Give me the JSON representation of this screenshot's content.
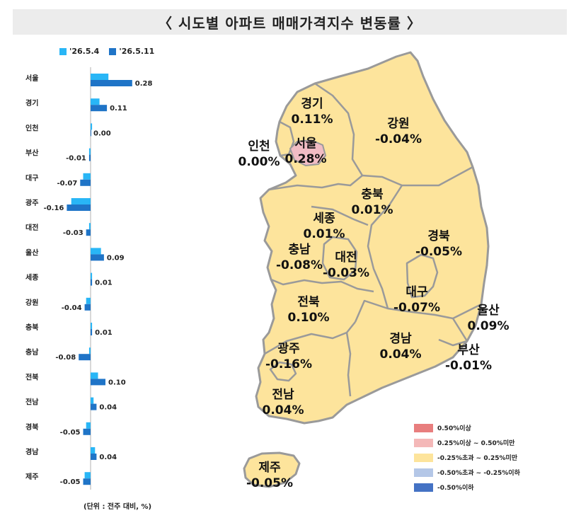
{
  "title": "〈 시도별 아파트 매매가격지수 변동률 〉",
  "unit_note": "(단위 : 전주 대비, %)",
  "colors": {
    "prev": "#29b6f6",
    "curr": "#1f74c7",
    "map_fill": "#fde49c",
    "map_border": "#9a9a9a",
    "seoul_fill": "#f1bcc4"
  },
  "chart_data": {
    "type": "bar",
    "orientation": "horizontal",
    "categories": [
      "서울",
      "경기",
      "인천",
      "부산",
      "대구",
      "광주",
      "대전",
      "울산",
      "세종",
      "강원",
      "충북",
      "충남",
      "전북",
      "전남",
      "경북",
      "경남",
      "제주"
    ],
    "series": [
      {
        "name": "'26.5.4",
        "values": [
          0.12,
          0.06,
          0.01,
          -0.01,
          -0.05,
          -0.13,
          -0.01,
          0.07,
          0.01,
          -0.03,
          0.01,
          -0.01,
          0.05,
          0.02,
          -0.03,
          0.03,
          -0.04
        ]
      },
      {
        "name": "'26.5.11",
        "values": [
          0.28,
          0.11,
          0.0,
          -0.01,
          -0.07,
          -0.16,
          -0.03,
          0.09,
          0.01,
          -0.04,
          0.01,
          -0.08,
          0.1,
          0.04,
          -0.05,
          0.04,
          -0.05
        ]
      }
    ],
    "data_labels": [
      "0.28",
      "0.11",
      "0.00",
      "-0.01",
      "-0.07",
      "-0.16",
      "-0.03",
      "0.09",
      "0.01",
      "-0.04",
      "0.01",
      "-0.08",
      "0.10",
      "0.04",
      "-0.05",
      "0.04",
      "-0.05"
    ]
  },
  "map": {
    "regions": [
      {
        "name": "경기",
        "value": "0.11%"
      },
      {
        "name": "강원",
        "value": "-0.04%"
      },
      {
        "name": "인천",
        "value": "0.00%"
      },
      {
        "name": "서울",
        "value": "0.28%"
      },
      {
        "name": "충북",
        "value": "0.01%"
      },
      {
        "name": "세종",
        "value": "0.01%"
      },
      {
        "name": "경북",
        "value": "-0.05%"
      },
      {
        "name": "충남",
        "value": "-0.08%"
      },
      {
        "name": "대전",
        "value": "-0.03%"
      },
      {
        "name": "대구",
        "value": "-0.07%"
      },
      {
        "name": "전북",
        "value": "0.10%"
      },
      {
        "name": "울산",
        "value": "0.09%"
      },
      {
        "name": "광주",
        "value": "-0.16%"
      },
      {
        "name": "경남",
        "value": "0.04%"
      },
      {
        "name": "부산",
        "value": "-0.01%"
      },
      {
        "name": "전남",
        "value": "0.04%"
      },
      {
        "name": "제주",
        "value": "-0.05%"
      }
    ],
    "legend": [
      {
        "label": "0.50%이상",
        "color": "#e87e7e"
      },
      {
        "label": "0.25%이상 ~ 0.50%미만",
        "color": "#f4b8b8"
      },
      {
        "label": "-0.25%초과 ~ 0.25%미만",
        "color": "#fde49c"
      },
      {
        "label": "-0.50%초과 ~ -0.25%이하",
        "color": "#b4c7e7"
      },
      {
        "label": "-0.50%이하",
        "color": "#4472c4"
      }
    ]
  }
}
